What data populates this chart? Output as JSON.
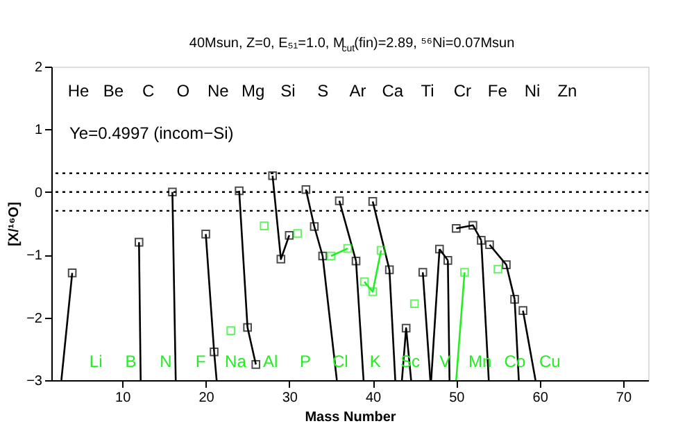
{
  "chart_data": {
    "type": "line",
    "title": "40Msun, Z=0, E₅₁=1.0, M$_{cut}$(fin)=2.89, ⁵⁶Ni=0.07Msun",
    "xlabel": "Mass Number",
    "ylabel": "[X/¹⁶O]",
    "xlim": [
      1.5,
      73
    ],
    "xticks": [
      10,
      20,
      30,
      40,
      50,
      60,
      70
    ],
    "ylim": [
      -3,
      2
    ],
    "yticks": [
      -3,
      -2,
      -1,
      0,
      1,
      2
    ],
    "grid": false,
    "ref_lines": [
      {
        "axis": "y",
        "value": 0.3,
        "color": "#000000",
        "line_style": "dotted"
      },
      {
        "axis": "y",
        "value": 0,
        "color": "#000000",
        "line_style": "dotted"
      },
      {
        "axis": "y",
        "value": -0.3,
        "color": "#000000",
        "line_style": "dotted"
      }
    ],
    "series": [
      {
        "color": "#000000",
        "marker": "square",
        "x": [
          4
        ],
        "values": [
          -1.29
        ]
      },
      {
        "color": "#000000",
        "marker": "none",
        "x": [
          2.7,
          4
        ],
        "values": [
          -3,
          -1.29
        ]
      },
      {
        "color": "#000000",
        "marker": "square",
        "x": [
          12
        ],
        "values": [
          -0.8
        ]
      },
      {
        "color": "#000000",
        "marker": "none",
        "x": [
          12,
          12.2
        ],
        "values": [
          -0.8,
          -3
        ]
      },
      {
        "color": "#000000",
        "marker": "square",
        "x": [
          16
        ],
        "values": [
          0.0
        ]
      },
      {
        "color": "#000000",
        "marker": "none",
        "x": [
          16,
          16.4
        ],
        "values": [
          0.0,
          -3
        ]
      },
      {
        "color": "#000000",
        "marker": "square",
        "x": [
          20,
          21
        ],
        "values": [
          -0.67,
          -2.55
        ]
      },
      {
        "color": "#000000",
        "marker": "none",
        "x": [
          21,
          21.3
        ],
        "values": [
          -2.55,
          -3
        ]
      },
      {
        "color": "#000000",
        "marker": "square",
        "x": [
          24,
          25,
          26
        ],
        "values": [
          0.02,
          -2.16,
          -2.75
        ]
      },
      {
        "color": "#000000",
        "marker": "square",
        "x": [
          28,
          29,
          30
        ],
        "values": [
          0.26,
          -1.07,
          -0.69
        ]
      },
      {
        "color": "#000000",
        "marker": "square",
        "x": [
          32,
          33,
          34
        ],
        "values": [
          0.04,
          -0.55,
          -1.02
        ]
      },
      {
        "color": "#000000",
        "marker": "none",
        "x": [
          34,
          35.7
        ],
        "values": [
          -1.02,
          -3
        ]
      },
      {
        "color": "#000000",
        "marker": "square",
        "x": [
          36,
          38
        ],
        "values": [
          -0.14,
          -1.1
        ]
      },
      {
        "color": "#000000",
        "marker": "none",
        "x": [
          38,
          38.9
        ],
        "values": [
          -1.1,
          -3
        ]
      },
      {
        "color": "#000000",
        "marker": "square",
        "x": [
          40,
          42
        ],
        "values": [
          -0.15,
          -1.24
        ]
      },
      {
        "color": "#000000",
        "marker": "none",
        "x": [
          42,
          42.7
        ],
        "values": [
          -1.24,
          -3
        ]
      },
      {
        "color": "#000000",
        "marker": "square",
        "x": [
          44
        ],
        "values": [
          -2.17
        ]
      },
      {
        "color": "#000000",
        "marker": "none",
        "x": [
          43.5,
          44,
          44.6
        ],
        "values": [
          -3,
          -2.17,
          -3
        ]
      },
      {
        "color": "#000000",
        "marker": "square",
        "x": [
          46
        ],
        "values": [
          -1.28
        ]
      },
      {
        "color": "#000000",
        "marker": "none",
        "x": [
          46,
          46.9
        ],
        "values": [
          -1.28,
          -3
        ]
      },
      {
        "color": "#000000",
        "marker": "square",
        "x": [
          48,
          49
        ],
        "values": [
          -0.91,
          -1.09
        ]
      },
      {
        "color": "#000000",
        "marker": "none",
        "x": [
          47,
          48
        ],
        "values": [
          -3,
          -0.91
        ]
      },
      {
        "color": "#000000",
        "marker": "none",
        "x": [
          49,
          49.2
        ],
        "values": [
          -1.09,
          -3
        ]
      },
      {
        "color": "#000000",
        "marker": "square",
        "x": [
          50,
          52,
          53
        ],
        "values": [
          -0.58,
          -0.53,
          -0.77
        ]
      },
      {
        "color": "#000000",
        "marker": "none",
        "x": [
          53,
          53.9
        ],
        "values": [
          -0.77,
          -3
        ]
      },
      {
        "color": "#000000",
        "marker": "square",
        "x": [
          54,
          56,
          57
        ],
        "values": [
          -0.84,
          -1.16,
          -1.71
        ]
      },
      {
        "color": "#000000",
        "marker": "none",
        "x": [
          57,
          57.5
        ],
        "values": [
          -1.71,
          -3
        ]
      },
      {
        "color": "#000000",
        "marker": "square",
        "x": [
          58
        ],
        "values": [
          -1.89
        ]
      },
      {
        "color": "#000000",
        "marker": "none",
        "x": [
          58,
          59.5
        ],
        "values": [
          -1.89,
          -3
        ]
      },
      {
        "color": "#22ee22",
        "marker": "square",
        "x": [
          23
        ],
        "values": [
          -2.21
        ]
      },
      {
        "color": "#22ee22",
        "marker": "square",
        "x": [
          27
        ],
        "values": [
          -0.54
        ]
      },
      {
        "color": "#22ee22",
        "marker": "square",
        "x": [
          31
        ],
        "values": [
          -0.66
        ]
      },
      {
        "color": "#22ee22",
        "marker": "square",
        "x": [
          35,
          37
        ],
        "values": [
          -1.02,
          -0.9
        ]
      },
      {
        "color": "#22ee22",
        "marker": "square",
        "x": [
          39,
          40,
          41
        ],
        "values": [
          -1.43,
          -1.59,
          -0.93
        ]
      },
      {
        "color": "#22ee22",
        "marker": "square",
        "x": [
          45
        ],
        "values": [
          -1.78
        ]
      },
      {
        "color": "#22ee22",
        "marker": "square",
        "x": [
          51
        ],
        "values": [
          -1.28
        ]
      },
      {
        "color": "#22ee22",
        "marker": "none",
        "x": [
          50,
          51
        ],
        "values": [
          -3,
          -1.28
        ]
      },
      {
        "color": "#22ee22",
        "marker": "square",
        "x": [
          55
        ],
        "values": [
          -1.23
        ]
      }
    ],
    "annotations": [
      "Ye=0.4997 (incom−Si)",
      "He",
      "Li",
      "Be",
      "B",
      "C",
      "N",
      "O",
      "F",
      "Ne",
      "Na",
      "Mg",
      "Al",
      "Si",
      "P",
      "S",
      "Cl",
      "Ar",
      "K",
      "Ca",
      "Sc",
      "Ti",
      "V",
      "Cr",
      "Mn",
      "Fe",
      "Co",
      "Ni",
      "Cu",
      "Zn"
    ]
  }
}
